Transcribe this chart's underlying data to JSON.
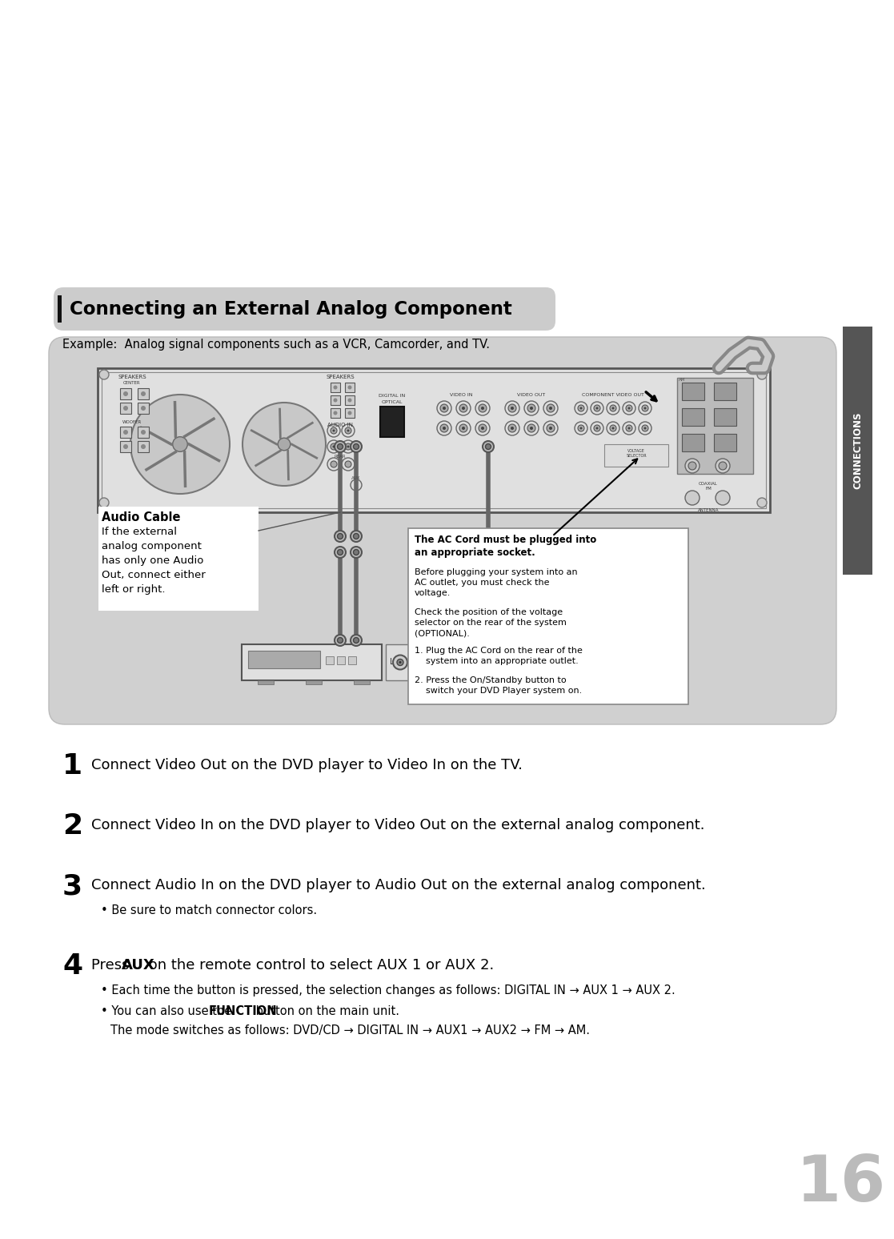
{
  "bg_color": "#ffffff",
  "page_number": "16",
  "title": "Connecting an External Analog Component",
  "example_text": "Example:  Analog signal components such as a VCR, Camcorder, and TV.",
  "connections_tab": "CONNECTIONS",
  "diagram_bg": "#d4d4d4",
  "step1_text": "Connect Video Out on the DVD player to Video In on the TV.",
  "step2_text": "Connect Video In on the DVD player to Video Out on the external analog component.",
  "step3_text": "Connect Audio In on the DVD player to Audio Out on the external analog component.",
  "step3_bullet": "Be sure to match connector colors.",
  "step4_bullet1": "Each time the button is pressed, the selection changes as follows: DIGITAL IN → AUX 1 → AUX 2.",
  "step4_bullet3": "The mode switches as follows: DVD/CD → DIGITAL IN → AUX1 → AUX2 → FM → AM.",
  "audio_cable_title": "Audio Cable",
  "audio_cable_text": "If the external\nanalog component\nhas only one Audio\nOut, connect either\nleft or right.",
  "ac_cord_bold": "The AC Cord must be plugged into\nan appropriate socket.",
  "ac_cord_text1": "Before plugging your system into an\nAC outlet, you must check the\nvoltage.",
  "ac_cord_text2": "Check the position of the voltage\nselector on the rear of the system\n(OPTIONAL).",
  "ac_cord_text3": "1. Plug the AC Cord on the rear of the\n    system into an appropriate outlet.",
  "ac_cord_text4": "2. Press the On/Standby button to\n    switch your DVD Player system on."
}
